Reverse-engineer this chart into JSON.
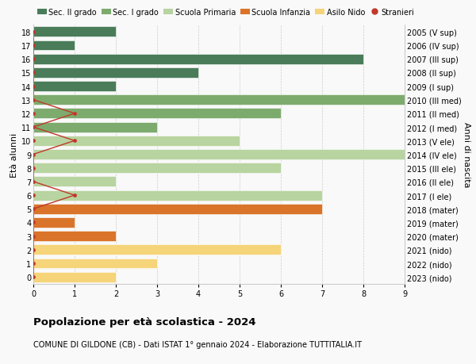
{
  "ages": [
    0,
    1,
    2,
    3,
    4,
    5,
    6,
    7,
    8,
    9,
    10,
    11,
    12,
    13,
    14,
    15,
    16,
    17,
    18
  ],
  "years": [
    "2023 (nido)",
    "2022 (nido)",
    "2021 (nido)",
    "2020 (mater)",
    "2019 (mater)",
    "2018 (mater)",
    "2017 (I ele)",
    "2016 (II ele)",
    "2015 (III ele)",
    "2014 (IV ele)",
    "2013 (V ele)",
    "2012 (I med)",
    "2011 (II med)",
    "2010 (III med)",
    "2009 (I sup)",
    "2008 (II sup)",
    "2007 (III sup)",
    "2006 (IV sup)",
    "2005 (V sup)"
  ],
  "values": [
    2,
    3,
    6,
    2,
    1,
    7,
    7,
    2,
    6,
    9,
    5,
    3,
    6,
    9,
    2,
    4,
    8,
    1,
    2
  ],
  "bar_colors": [
    "#f5d47a",
    "#f5d47a",
    "#f5d47a",
    "#d9742a",
    "#d9742a",
    "#d9742a",
    "#b8d4a0",
    "#b8d4a0",
    "#b8d4a0",
    "#b8d4a0",
    "#b8d4a0",
    "#7dab6e",
    "#7dab6e",
    "#7dab6e",
    "#4a7c59",
    "#4a7c59",
    "#4a7c59",
    "#4a7c59",
    "#4a7c59"
  ],
  "stranieri_x": [
    0,
    0,
    0,
    0,
    0,
    0,
    1,
    0,
    0,
    0,
    1,
    0,
    1,
    0,
    0,
    0,
    0,
    0,
    0
  ],
  "title": "Popolazione per età scolastica - 2024",
  "subtitle": "COMUNE DI GILDONE (CB) - Dati ISTAT 1° gennaio 2024 - Elaborazione TUTTITALIA.IT",
  "ylabel_left": "Età alunni",
  "ylabel_right": "Anni di nascita",
  "legend_labels": [
    "Sec. II grado",
    "Sec. I grado",
    "Scuola Primaria",
    "Scuola Infanzia",
    "Asilo Nido",
    "Stranieri"
  ],
  "legend_colors": [
    "#4a7c59",
    "#7dab6e",
    "#b8d4a0",
    "#d9742a",
    "#f5d47a",
    "#c0392b"
  ],
  "xlim": [
    0,
    9
  ],
  "background": "#f9f9f9",
  "line_color": "#c0392b",
  "dot_color": "#c0392b",
  "grid_color": "#cccccc"
}
